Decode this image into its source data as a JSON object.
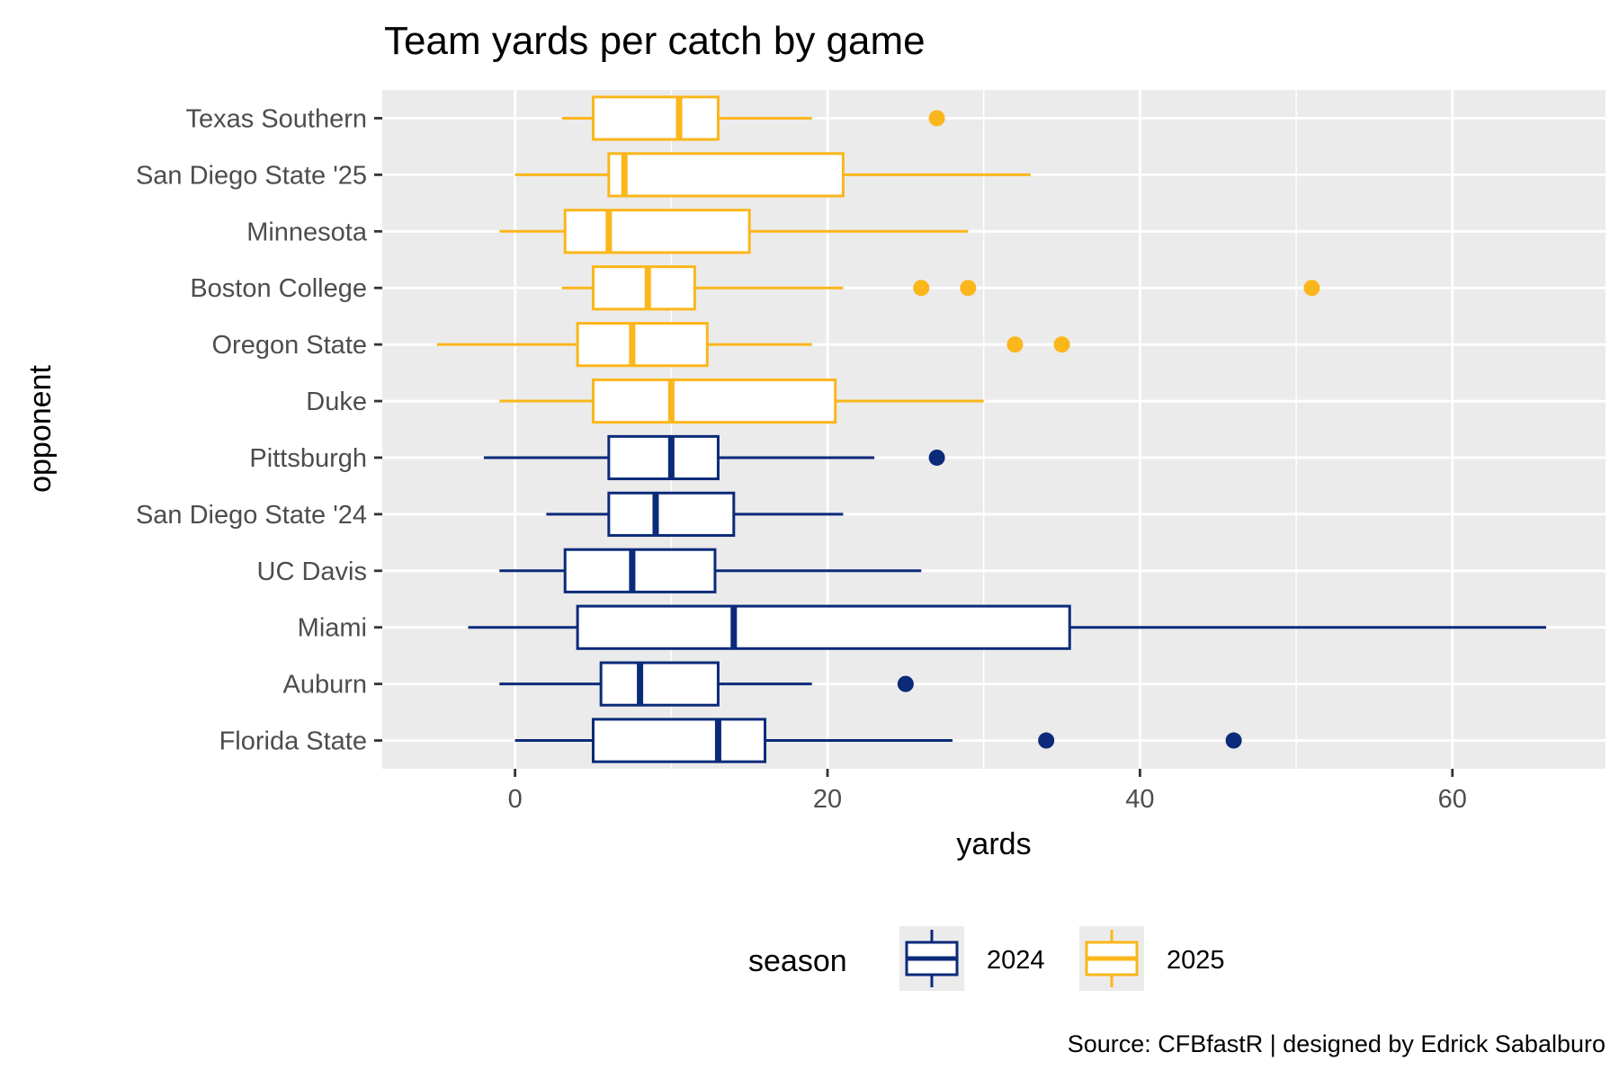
{
  "chart_data": {
    "type": "boxplot",
    "title": "Team yards per catch by game",
    "xlabel": "yards",
    "ylabel": "opponent",
    "xlim": [
      -8.5,
      69.8
    ],
    "x_ticks": [
      0,
      20,
      40,
      60
    ],
    "grid": true,
    "legend": {
      "title": "season",
      "position": "bottom",
      "entries": [
        {
          "label": "2024",
          "color": "#0b2a7a"
        },
        {
          "label": "2025",
          "color": "#fbb61b"
        }
      ]
    },
    "caption": "Source: CFBfastR | designed by Edrick Sabalburo",
    "categories": [
      "Texas Southern",
      "San Diego State '25",
      "Minnesota",
      "Boston College",
      "Oregon State",
      "Duke",
      "Pittsburgh",
      "San Diego State '24",
      "UC Davis",
      "Miami",
      "Auburn",
      "Florida State"
    ],
    "boxes": [
      {
        "opponent": "Texas Southern",
        "season": "2025",
        "whisker_low": 3,
        "q1": 5,
        "median": 10.5,
        "q3": 13,
        "whisker_high": 19,
        "outliers": [
          27
        ]
      },
      {
        "opponent": "San Diego State '25",
        "season": "2025",
        "whisker_low": 0,
        "q1": 6,
        "median": 7,
        "q3": 21,
        "whisker_high": 33,
        "outliers": []
      },
      {
        "opponent": "Minnesota",
        "season": "2025",
        "whisker_low": -1,
        "q1": 3.2,
        "median": 6,
        "q3": 15,
        "whisker_high": 29,
        "outliers": []
      },
      {
        "opponent": "Boston College",
        "season": "2025",
        "whisker_low": 3,
        "q1": 5,
        "median": 8.5,
        "q3": 11.5,
        "whisker_high": 21,
        "outliers": [
          26,
          29,
          51
        ]
      },
      {
        "opponent": "Oregon State",
        "season": "2025",
        "whisker_low": -5,
        "q1": 4,
        "median": 7.5,
        "q3": 12.3,
        "whisker_high": 19,
        "outliers": [
          32,
          35
        ]
      },
      {
        "opponent": "Duke",
        "season": "2025",
        "whisker_low": -1,
        "q1": 5,
        "median": 10,
        "q3": 20.5,
        "whisker_high": 30,
        "outliers": []
      },
      {
        "opponent": "Pittsburgh",
        "season": "2024",
        "whisker_low": -2,
        "q1": 6,
        "median": 10,
        "q3": 13,
        "whisker_high": 23,
        "outliers": [
          27
        ]
      },
      {
        "opponent": "San Diego State '24",
        "season": "2024",
        "whisker_low": 2,
        "q1": 6,
        "median": 9,
        "q3": 14,
        "whisker_high": 21,
        "outliers": []
      },
      {
        "opponent": "UC Davis",
        "season": "2024",
        "whisker_low": -1,
        "q1": 3.2,
        "median": 7.5,
        "q3": 12.8,
        "whisker_high": 26,
        "outliers": []
      },
      {
        "opponent": "Miami",
        "season": "2024",
        "whisker_low": -3,
        "q1": 4,
        "median": 14,
        "q3": 35.5,
        "whisker_high": 66,
        "outliers": []
      },
      {
        "opponent": "Auburn",
        "season": "2024",
        "whisker_low": -1,
        "q1": 5.5,
        "median": 8,
        "q3": 13,
        "whisker_high": 19,
        "outliers": [
          25
        ]
      },
      {
        "opponent": "Florida State",
        "season": "2024",
        "whisker_low": 0,
        "q1": 5,
        "median": 13,
        "q3": 16,
        "whisker_high": 28,
        "outliers": [
          34,
          46
        ]
      }
    ]
  }
}
